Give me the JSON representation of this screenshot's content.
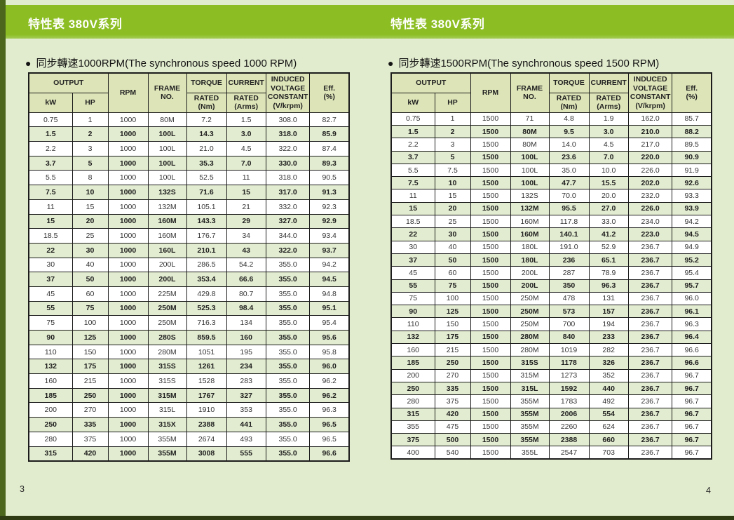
{
  "colors": {
    "banner_green": "#8cbe23",
    "page_background": "#e1ebcd",
    "side_strip_green": "#4c671d",
    "bottom_strip_green": "#2e3b13",
    "header_cell_bg": "#dde5b8",
    "shaded_row_bg": "#e2ecd0",
    "table_border": "#1c1c1c"
  },
  "banners": [
    {
      "title": "特性表 380V系列"
    },
    {
      "title": "特性表 380V系列"
    }
  ],
  "panels": [
    {
      "bullet": "●",
      "section_title": "同步轉速1000RPM(The synchronous speed 1000 RPM)",
      "page_number": "3",
      "header": {
        "output": "OUTPUT",
        "kw": "kW",
        "hp": "HP",
        "rpm": "RPM",
        "frame": "FRAME\nNO.",
        "torque": "TORQUE",
        "torque_sub": "RATED\n(Nm)",
        "current": "CURRENT",
        "current_sub": "RATED\n(Arms)",
        "induced": "INDUCED\nVOLTAGE\nCONSTANT\n(V/krpm)",
        "eff": "Eff.\n(%)"
      },
      "rows": [
        [
          "0.75",
          "1",
          "1000",
          "80M",
          "7.2",
          "1.5",
          "308.0",
          "82.7"
        ],
        [
          "1.5",
          "2",
          "1000",
          "100L",
          "14.3",
          "3.0",
          "318.0",
          "85.9"
        ],
        [
          "2.2",
          "3",
          "1000",
          "100L",
          "21.0",
          "4.5",
          "322.0",
          "87.4"
        ],
        [
          "3.7",
          "5",
          "1000",
          "100L",
          "35.3",
          "7.0",
          "330.0",
          "89.3"
        ],
        [
          "5.5",
          "8",
          "1000",
          "100L",
          "52.5",
          "11",
          "318.0",
          "90.5"
        ],
        [
          "7.5",
          "10",
          "1000",
          "132S",
          "71.6",
          "15",
          "317.0",
          "91.3"
        ],
        [
          "11",
          "15",
          "1000",
          "132M",
          "105.1",
          "21",
          "332.0",
          "92.3"
        ],
        [
          "15",
          "20",
          "1000",
          "160M",
          "143.3",
          "29",
          "327.0",
          "92.9"
        ],
        [
          "18.5",
          "25",
          "1000",
          "160M",
          "176.7",
          "34",
          "344.0",
          "93.4"
        ],
        [
          "22",
          "30",
          "1000",
          "160L",
          "210.1",
          "43",
          "322.0",
          "93.7"
        ],
        [
          "30",
          "40",
          "1000",
          "200L",
          "286.5",
          "54.2",
          "355.0",
          "94.2"
        ],
        [
          "37",
          "50",
          "1000",
          "200L",
          "353.4",
          "66.6",
          "355.0",
          "94.5"
        ],
        [
          "45",
          "60",
          "1000",
          "225M",
          "429.8",
          "80.7",
          "355.0",
          "94.8"
        ],
        [
          "55",
          "75",
          "1000",
          "250M",
          "525.3",
          "98.4",
          "355.0",
          "95.1"
        ],
        [
          "75",
          "100",
          "1000",
          "250M",
          "716.3",
          "134",
          "355.0",
          "95.4"
        ],
        [
          "90",
          "125",
          "1000",
          "280S",
          "859.5",
          "160",
          "355.0",
          "95.6"
        ],
        [
          "110",
          "150",
          "1000",
          "280M",
          "1051",
          "195",
          "355.0",
          "95.8"
        ],
        [
          "132",
          "175",
          "1000",
          "315S",
          "1261",
          "234",
          "355.0",
          "96.0"
        ],
        [
          "160",
          "215",
          "1000",
          "315S",
          "1528",
          "283",
          "355.0",
          "96.2"
        ],
        [
          "185",
          "250",
          "1000",
          "315M",
          "1767",
          "327",
          "355.0",
          "96.2"
        ],
        [
          "200",
          "270",
          "1000",
          "315L",
          "1910",
          "353",
          "355.0",
          "96.3"
        ],
        [
          "250",
          "335",
          "1000",
          "315X",
          "2388",
          "441",
          "355.0",
          "96.5"
        ],
        [
          "280",
          "375",
          "1000",
          "355M",
          "2674",
          "493",
          "355.0",
          "96.5"
        ],
        [
          "315",
          "420",
          "1000",
          "355M",
          "3008",
          "555",
          "355.0",
          "96.6"
        ]
      ]
    },
    {
      "bullet": "●",
      "section_title": "同步轉速1500RPM(The synchronous speed 1500 RPM)",
      "page_number": "4",
      "header": {
        "output": "OUTPUT",
        "kw": "kW",
        "hp": "HP",
        "rpm": "RPM",
        "frame": "FRAME\nNO.",
        "torque": "TORQUE",
        "torque_sub": "RATED\n(Nm)",
        "current": "CURRENT",
        "current_sub": "RATED\n(Arms)",
        "induced": "INDUCED\nVOLTAGE\nCONSTANT\n(V/krpm)",
        "eff": "Eff.\n(%)"
      },
      "rows": [
        [
          "0.75",
          "1",
          "1500",
          "71",
          "4.8",
          "1.9",
          "162.0",
          "85.7"
        ],
        [
          "1.5",
          "2",
          "1500",
          "80M",
          "9.5",
          "3.0",
          "210.0",
          "88.2"
        ],
        [
          "2.2",
          "3",
          "1500",
          "80M",
          "14.0",
          "4.5",
          "217.0",
          "89.5"
        ],
        [
          "3.7",
          "5",
          "1500",
          "100L",
          "23.6",
          "7.0",
          "220.0",
          "90.9"
        ],
        [
          "5.5",
          "7.5",
          "1500",
          "100L",
          "35.0",
          "10.0",
          "226.0",
          "91.9"
        ],
        [
          "7.5",
          "10",
          "1500",
          "100L",
          "47.7",
          "15.5",
          "202.0",
          "92.6"
        ],
        [
          "11",
          "15",
          "1500",
          "132S",
          "70.0",
          "20.0",
          "232.0",
          "93.3"
        ],
        [
          "15",
          "20",
          "1500",
          "132M",
          "95.5",
          "27.0",
          "226.0",
          "93.9"
        ],
        [
          "18.5",
          "25",
          "1500",
          "160M",
          "117.8",
          "33.0",
          "234.0",
          "94.2"
        ],
        [
          "22",
          "30",
          "1500",
          "160M",
          "140.1",
          "41.2",
          "223.0",
          "94.5"
        ],
        [
          "30",
          "40",
          "1500",
          "180L",
          "191.0",
          "52.9",
          "236.7",
          "94.9"
        ],
        [
          "37",
          "50",
          "1500",
          "180L",
          "236",
          "65.1",
          "236.7",
          "95.2"
        ],
        [
          "45",
          "60",
          "1500",
          "200L",
          "287",
          "78.9",
          "236.7",
          "95.4"
        ],
        [
          "55",
          "75",
          "1500",
          "200L",
          "350",
          "96.3",
          "236.7",
          "95.7"
        ],
        [
          "75",
          "100",
          "1500",
          "250M",
          "478",
          "131",
          "236.7",
          "96.0"
        ],
        [
          "90",
          "125",
          "1500",
          "250M",
          "573",
          "157",
          "236.7",
          "96.1"
        ],
        [
          "110",
          "150",
          "1500",
          "250M",
          "700",
          "194",
          "236.7",
          "96.3"
        ],
        [
          "132",
          "175",
          "1500",
          "280M",
          "840",
          "233",
          "236.7",
          "96.4"
        ],
        [
          "160",
          "215",
          "1500",
          "280M",
          "1019",
          "282",
          "236.7",
          "96.6"
        ],
        [
          "185",
          "250",
          "1500",
          "315S",
          "1178",
          "326",
          "236.7",
          "96.6"
        ],
        [
          "200",
          "270",
          "1500",
          "315M",
          "1273",
          "352",
          "236.7",
          "96.7"
        ],
        [
          "250",
          "335",
          "1500",
          "315L",
          "1592",
          "440",
          "236.7",
          "96.7"
        ],
        [
          "280",
          "375",
          "1500",
          "355M",
          "1783",
          "492",
          "236.7",
          "96.7"
        ],
        [
          "315",
          "420",
          "1500",
          "355M",
          "2006",
          "554",
          "236.7",
          "96.7"
        ],
        [
          "355",
          "475",
          "1500",
          "355M",
          "2260",
          "624",
          "236.7",
          "96.7"
        ],
        [
          "375",
          "500",
          "1500",
          "355M",
          "2388",
          "660",
          "236.7",
          "96.7"
        ],
        [
          "400",
          "540",
          "1500",
          "355L",
          "2547",
          "703",
          "236.7",
          "96.7"
        ]
      ]
    }
  ]
}
